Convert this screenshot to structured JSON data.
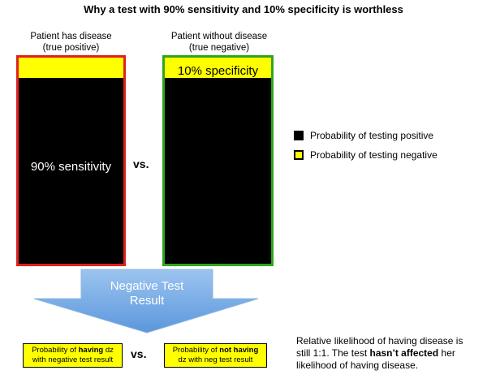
{
  "title": "Why a test with 90% sensitivity and 10% specificity is worthless",
  "columns": {
    "disease": {
      "header_line1": "Patient has disease",
      "header_line2": "(true positive)",
      "bar_label": "90% sensitivity",
      "positive_fraction": 0.9,
      "negative_fraction": 0.1,
      "border_color": "#e0201e"
    },
    "no_disease": {
      "header_line1": "Patient without disease",
      "header_line2": "(true negative)",
      "bar_label": "10% specificity",
      "positive_fraction": 0.9,
      "negative_fraction": 0.1,
      "border_color": "#2fa51c"
    },
    "vs_label": "vs."
  },
  "legend": [
    {
      "label": "Probability of testing positive",
      "color": "#000000"
    },
    {
      "label": "Probability of testing negative",
      "color": "#ffff00"
    }
  ],
  "arrow": {
    "line1": "Negative Test",
    "line2": "Result",
    "color": "#7fb2e8"
  },
  "bottom": {
    "left_box": {
      "pre": "Probability of ",
      "bold": "having",
      "post": " dz",
      "line2": "with negative test result"
    },
    "vs_label": "vs.",
    "right_box": {
      "pre": "Probability of ",
      "bold": "not having",
      "post": "",
      "line2": "dz with neg test result"
    },
    "note": {
      "part1": "Relative likelihood of having disease is still 1:1.   The test ",
      "bold": "hasn’t affected",
      "part2": " her likelihood of having disease."
    }
  }
}
